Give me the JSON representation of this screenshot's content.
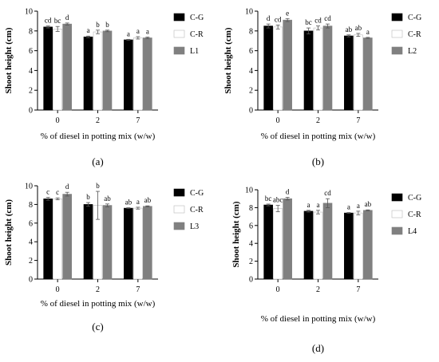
{
  "colors": {
    "c_g": "#000000",
    "c_r": "#ffffff",
    "line": "#808080",
    "axis": "#000000"
  },
  "chart_data": [
    {
      "type": "bar",
      "panel_label": "(a)",
      "title": "",
      "xlabel": "% of diesel in potting mix (w/w)",
      "ylabel": "Shoot height (cm)",
      "ylim": [
        0,
        10
      ],
      "yticks": [
        "0",
        "2",
        "4",
        "6",
        "8",
        "10"
      ],
      "categories": [
        "0",
        "2",
        "7"
      ],
      "series": [
        {
          "name": "C-G",
          "values": [
            8.4,
            7.4,
            7.1
          ],
          "errors": [
            0.1,
            0.08,
            0.05
          ],
          "letters": [
            "cd",
            "a",
            "a"
          ]
        },
        {
          "name": "C-R",
          "values": [
            8.2,
            7.9,
            7.3
          ],
          "errors": [
            0.25,
            0.18,
            0.12
          ],
          "letters": [
            "bc",
            "b",
            "a"
          ]
        },
        {
          "name": "L1",
          "values": [
            8.7,
            8.0,
            7.3
          ],
          "errors": [
            0.1,
            0.08,
            0.08
          ],
          "letters": [
            "d",
            "b",
            "a"
          ]
        }
      ]
    },
    {
      "type": "bar",
      "panel_label": "(b)",
      "title": "",
      "xlabel": "% of diesel in potting mix (w/w)",
      "ylabel": "Shoot height (cm)",
      "ylim": [
        0,
        10
      ],
      "yticks": [
        "0",
        "2",
        "4",
        "6",
        "8",
        "10"
      ],
      "categories": [
        "0",
        "2",
        "7"
      ],
      "series": [
        {
          "name": "C-G",
          "values": [
            8.5,
            8.0,
            7.5
          ],
          "errors": [
            0.2,
            0.3,
            0.1
          ],
          "letters": [
            "d",
            "bc",
            "ab"
          ]
        },
        {
          "name": "C-R",
          "values": [
            8.4,
            8.3,
            7.6
          ],
          "errors": [
            0.2,
            0.2,
            0.15
          ],
          "letters": [
            "cd",
            "cd",
            "ab"
          ]
        },
        {
          "name": "L2",
          "values": [
            9.1,
            8.5,
            7.3
          ],
          "errors": [
            0.15,
            0.2,
            0.05
          ],
          "letters": [
            "e",
            "cd",
            "a"
          ]
        }
      ]
    },
    {
      "type": "bar",
      "panel_label": "(c)",
      "title": "",
      "xlabel": "% of diesel in potting mix (w/w)",
      "ylabel": "Shoot height (cm)",
      "ylim": [
        0,
        10
      ],
      "yticks": [
        "0",
        "2",
        "4",
        "6",
        "8",
        "10"
      ],
      "categories": [
        "0",
        "2",
        "7"
      ],
      "series": [
        {
          "name": "C-G",
          "values": [
            8.6,
            8.0,
            7.6
          ],
          "errors": [
            0.15,
            0.2,
            0.05
          ],
          "letters": [
            "c",
            "b",
            "ab"
          ]
        },
        {
          "name": "C-R",
          "values": [
            8.6,
            7.9,
            7.6
          ],
          "errors": [
            0.1,
            1.5,
            0.1
          ],
          "letters": [
            "c",
            "b",
            "a"
          ]
        },
        {
          "name": "L3",
          "values": [
            9.1,
            7.9,
            7.8
          ],
          "errors": [
            0.2,
            0.15,
            0.05
          ],
          "letters": [
            "d",
            "ab",
            "ab"
          ]
        }
      ]
    },
    {
      "type": "bar",
      "panel_label": "(d)",
      "title": "",
      "xlabel": "% of diesel in potting mix (w/w)",
      "ylabel": "Shoot height (cm)",
      "ylim": [
        0,
        10
      ],
      "yticks": [
        "0",
        "2",
        "4",
        "6",
        "8",
        "10"
      ],
      "categories": [
        "0",
        "2",
        "7"
      ],
      "series": [
        {
          "name": "C-G",
          "values": [
            8.3,
            7.6,
            7.4
          ],
          "errors": [
            0.1,
            0.1,
            0.05
          ],
          "letters": [
            "bc",
            "a",
            "a"
          ]
        },
        {
          "name": "C-R",
          "values": [
            7.9,
            7.5,
            7.4
          ],
          "errors": [
            0.35,
            0.2,
            0.2
          ],
          "letters": [
            "abc",
            "a",
            "a"
          ]
        },
        {
          "name": "L4",
          "values": [
            9.0,
            8.5,
            7.7
          ],
          "errors": [
            0.15,
            0.5,
            0.05
          ],
          "letters": [
            "d",
            "cd",
            "ab"
          ]
        }
      ]
    }
  ]
}
